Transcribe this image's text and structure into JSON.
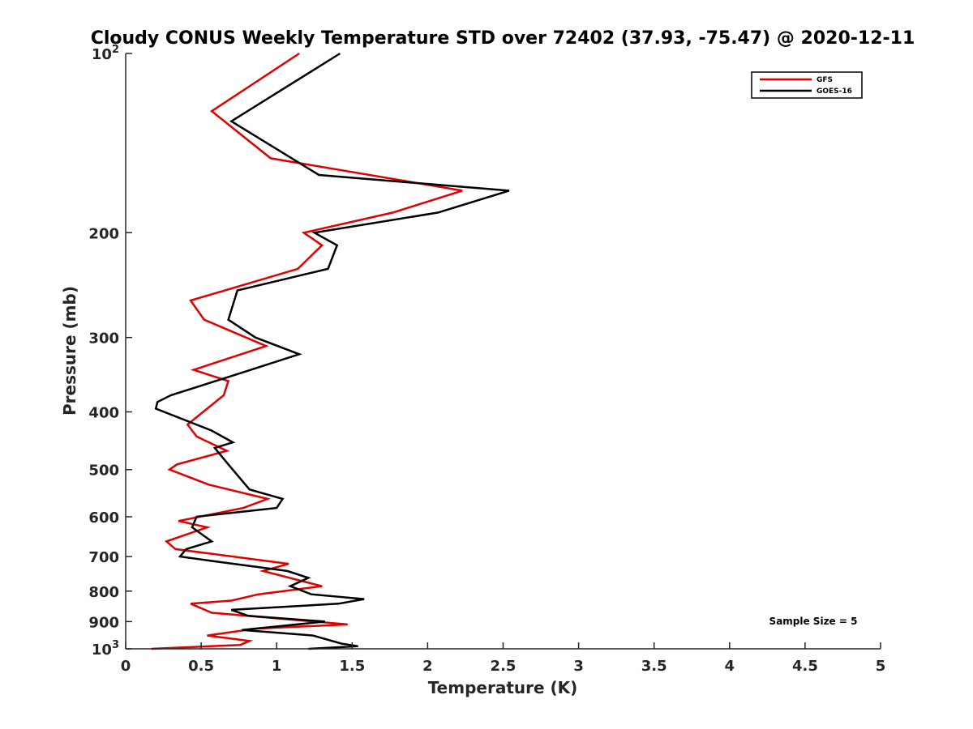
{
  "chart_data": {
    "type": "line",
    "title": "Cloudy CONUS Weekly Temperature STD over 72402 (37.93, -75.47) @ 2020-12-11",
    "xlabel": "Temperature (K)",
    "ylabel": "Pressure (mb)",
    "xlim": [
      0,
      5
    ],
    "ylim": [
      100,
      1000
    ],
    "yscale": "log",
    "y_reversed": true,
    "grid": false,
    "legend_position": "top-right",
    "xticks": [
      0,
      0.5,
      1,
      1.5,
      2,
      2.5,
      3,
      3.5,
      4,
      4.5,
      5
    ],
    "xtick_labels": [
      "0",
      "0.5",
      "1",
      "1.5",
      "2",
      "2.5",
      "3",
      "3.5",
      "4",
      "4.5",
      "5"
    ],
    "yticks": [
      100,
      200,
      300,
      400,
      500,
      600,
      700,
      800,
      900,
      1000
    ],
    "ytick_labels": [
      {
        "base": "10",
        "exp": "2"
      },
      {
        "base": "200",
        "exp": ""
      },
      {
        "base": "300",
        "exp": ""
      },
      {
        "base": "400",
        "exp": ""
      },
      {
        "base": "500",
        "exp": ""
      },
      {
        "base": "600",
        "exp": ""
      },
      {
        "base": "700",
        "exp": ""
      },
      {
        "base": "800",
        "exp": ""
      },
      {
        "base": "900",
        "exp": ""
      },
      {
        "base": "10",
        "exp": "3"
      }
    ],
    "annotation": "Sample Size = 5",
    "series": [
      {
        "name": "GFS",
        "color": "#e00000",
        "points": [
          [
            1.15,
            100
          ],
          [
            0.57,
            125
          ],
          [
            0.96,
            150
          ],
          [
            2.23,
            170
          ],
          [
            1.77,
            185
          ],
          [
            1.18,
            200
          ],
          [
            1.3,
            210
          ],
          [
            1.14,
            230
          ],
          [
            0.43,
            260
          ],
          [
            0.52,
            280
          ],
          [
            0.93,
            310
          ],
          [
            0.45,
            340
          ],
          [
            0.68,
            355
          ],
          [
            0.65,
            375
          ],
          [
            0.41,
            420
          ],
          [
            0.47,
            440
          ],
          [
            0.67,
            465
          ],
          [
            0.34,
            490
          ],
          [
            0.29,
            500
          ],
          [
            0.55,
            530
          ],
          [
            0.94,
            560
          ],
          [
            0.78,
            580
          ],
          [
            0.35,
            610
          ],
          [
            0.54,
            625
          ],
          [
            0.27,
            660
          ],
          [
            0.33,
            680
          ],
          [
            1.08,
            720
          ],
          [
            0.91,
            740
          ],
          [
            1.3,
            785
          ],
          [
            0.88,
            810
          ],
          [
            0.7,
            830
          ],
          [
            0.43,
            840
          ],
          [
            0.57,
            870
          ],
          [
            1.47,
            910
          ],
          [
            0.86,
            925
          ],
          [
            0.54,
            950
          ],
          [
            0.82,
            970
          ],
          [
            0.76,
            985
          ],
          [
            0.17,
            1000
          ]
        ]
      },
      {
        "name": "GOES-16",
        "color": "#000000",
        "points": [
          [
            1.42,
            100
          ],
          [
            0.7,
            130
          ],
          [
            1.28,
            160
          ],
          [
            2.54,
            170
          ],
          [
            2.07,
            185
          ],
          [
            1.25,
            200
          ],
          [
            1.4,
            210
          ],
          [
            1.34,
            230
          ],
          [
            0.74,
            250
          ],
          [
            0.68,
            280
          ],
          [
            0.86,
            300
          ],
          [
            1.15,
            320
          ],
          [
            0.75,
            345
          ],
          [
            0.3,
            375
          ],
          [
            0.21,
            385
          ],
          [
            0.2,
            395
          ],
          [
            0.57,
            430
          ],
          [
            0.71,
            450
          ],
          [
            0.59,
            460
          ],
          [
            0.68,
            490
          ],
          [
            0.82,
            540
          ],
          [
            1.04,
            560
          ],
          [
            1.0,
            580
          ],
          [
            0.47,
            600
          ],
          [
            0.44,
            625
          ],
          [
            0.57,
            660
          ],
          [
            0.4,
            680
          ],
          [
            0.36,
            700
          ],
          [
            0.54,
            710
          ],
          [
            1.07,
            740
          ],
          [
            1.21,
            760
          ],
          [
            1.09,
            785
          ],
          [
            1.23,
            810
          ],
          [
            1.58,
            825
          ],
          [
            1.41,
            840
          ],
          [
            0.7,
            860
          ],
          [
            0.81,
            880
          ],
          [
            1.32,
            900
          ],
          [
            0.77,
            930
          ],
          [
            1.24,
            950
          ],
          [
            1.43,
            980
          ],
          [
            1.54,
            990
          ],
          [
            1.21,
            1000
          ]
        ]
      }
    ]
  }
}
